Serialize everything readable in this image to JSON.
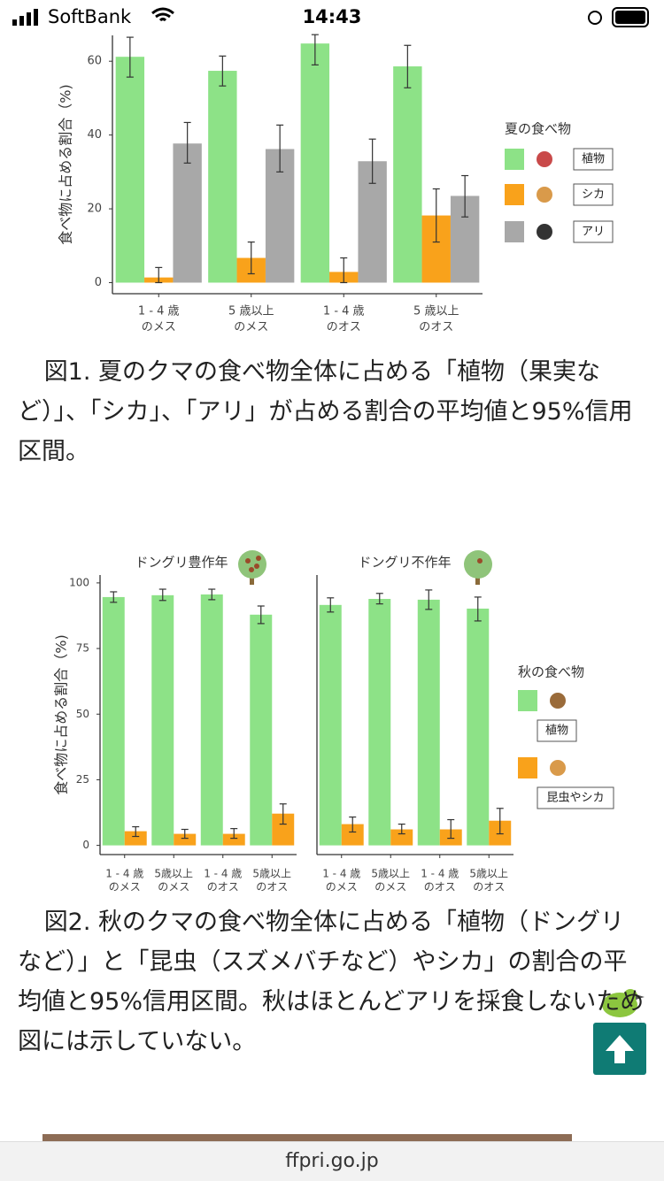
{
  "status_bar": {
    "carrier": "SoftBank",
    "time": "14:43"
  },
  "chart_data": [
    {
      "type": "bar",
      "y_label": "食べ物に占める割合（%)",
      "categories": [
        [
          "1 - 4 歳",
          "のメス"
        ],
        [
          "5 歳以上",
          "のメス"
        ],
        [
          "1 - 4 歳",
          "のオス"
        ],
        [
          "5 歳以上",
          "のオス"
        ]
      ],
      "series": [
        {
          "name": "植物",
          "color": "#8de287",
          "values": [
            61.2,
            57.4,
            64.8,
            58.6
          ],
          "lower": [
            55.7,
            53.3,
            59,
            52.8
          ],
          "upper": [
            66.5,
            61.4,
            67.2,
            64.3
          ]
        },
        {
          "name": "シカ",
          "color": "#f9a21b",
          "values": [
            1.4,
            6.7,
            2.9,
            18.2
          ],
          "lower": [
            0,
            2.4,
            0,
            11
          ],
          "upper": [
            4.1,
            11,
            6.7,
            25.4
          ]
        },
        {
          "name": "アリ",
          "color": "#a8a8a8",
          "values": [
            37.7,
            36.2,
            32.9,
            23.5
          ],
          "lower": [
            32.4,
            30,
            26.9,
            17.8
          ],
          "upper": [
            43.4,
            42.7,
            38.9,
            29
          ]
        }
      ],
      "ylim": [
        -3,
        67
      ],
      "yticks": [
        0,
        20,
        40,
        60
      ],
      "legend_title": "夏の食べ物",
      "legend": "right"
    },
    {
      "type": "bar",
      "title": "ドングリ豊作年",
      "y_label": "食べ物に占める割合（%)",
      "categories": [
        [
          "1 - 4 歳",
          "のメス"
        ],
        [
          "5歳以上",
          "のメス"
        ],
        [
          "1 - 4 歳",
          "のオス"
        ],
        [
          "5歳以上",
          "のオス"
        ]
      ],
      "series": [
        {
          "name": "植物",
          "color": "#8de287",
          "values": [
            94.6,
            95.3,
            95.6,
            87.9
          ],
          "lower": [
            92.6,
            93.3,
            93.6,
            84.5
          ],
          "upper": [
            96.6,
            97.6,
            97.6,
            91.2
          ]
        },
        {
          "name": "昆虫やシカ",
          "color": "#f9a21b",
          "values": [
            5.4,
            4.4,
            4.4,
            12.1
          ],
          "lower": [
            3.4,
            2.7,
            2.7,
            8.1
          ],
          "upper": [
            7.1,
            6.1,
            6.4,
            15.8
          ]
        }
      ],
      "ylim": [
        -3.5,
        103
      ],
      "yticks": [
        0,
        25,
        50,
        75,
        100
      ],
      "legend_title": "秋の食べ物",
      "legend": "right"
    },
    {
      "type": "bar",
      "title": "ドングリ不作年",
      "categories": [
        [
          "1 - 4 歳",
          "のメス"
        ],
        [
          "5歳以上",
          "のメス"
        ],
        [
          "1 - 4 歳",
          "のオス"
        ],
        [
          "5歳以上",
          "のオス"
        ]
      ],
      "series": [
        {
          "color": "#8de287",
          "values": [
            91.6,
            93.9,
            93.6,
            90.2
          ],
          "lower": [
            88.9,
            92,
            89.9,
            85.5
          ],
          "upper": [
            94.3,
            96,
            97.3,
            94.6
          ]
        },
        {
          "color": "#f9a21b",
          "values": [
            8.1,
            6.1,
            6.1,
            9.4
          ],
          "lower": [
            5.1,
            4.4,
            2.7,
            4.4
          ],
          "upper": [
            10.8,
            8.1,
            9.8,
            14.1
          ]
        }
      ],
      "ylim": [
        -3.5,
        103
      ]
    }
  ],
  "captions": [
    "図1. 夏のクマの食べ物全体に占める「植物（果実など）」、「シカ」、「アリ」が占める割合の平均値と95%信用区間。",
    "図2. 秋のクマの食べ物全体に占める「植物（ドングリなど）」と「昆虫（スズメバチなど）やシカ」の割合の平均値と95%信用区間。秋はほとんどアリを採食しないため図には示していない。"
  ],
  "footer": {
    "url": "ffpri.go.jp"
  }
}
